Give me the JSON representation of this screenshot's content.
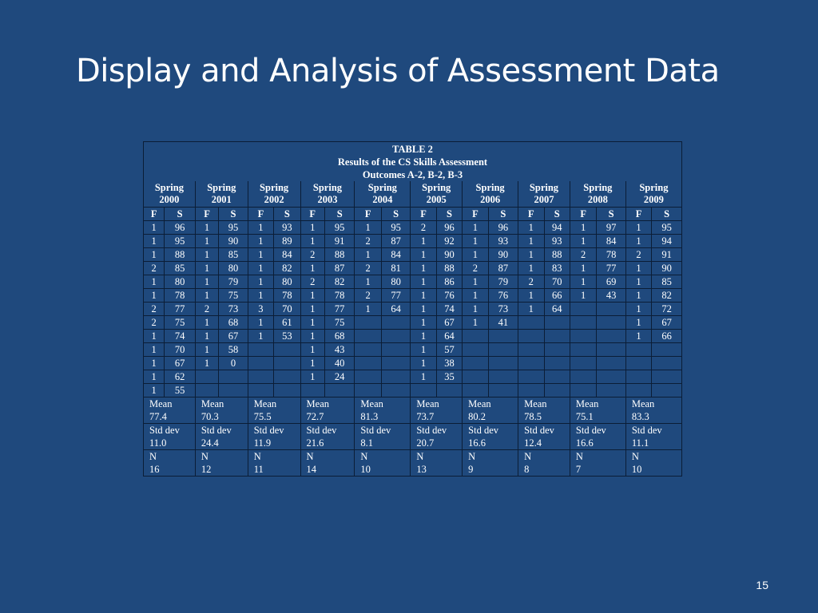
{
  "slide": {
    "title": "Display and Analysis of Assessment Data",
    "number": "15"
  },
  "table": {
    "caption": [
      "TABLE 2",
      "Results of the CS Skills Assessment",
      "Outcomes A-2, B-2, B-3"
    ],
    "terms": [
      [
        "Spring",
        "2000"
      ],
      [
        "Spring",
        "2001"
      ],
      [
        "Spring",
        "2002"
      ],
      [
        "Spring",
        "2003"
      ],
      [
        "Spring",
        "2004"
      ],
      [
        "Spring",
        "2005"
      ],
      [
        "Spring",
        "2006"
      ],
      [
        "Spring",
        "2007"
      ],
      [
        "Spring",
        "2008"
      ],
      [
        "Spring",
        "2009"
      ]
    ],
    "subheaders": [
      "F",
      "S"
    ],
    "rows": [
      [
        "1",
        "96",
        "1",
        "95",
        "1",
        "93",
        "1",
        "95",
        "1",
        "95",
        "2",
        "96",
        "1",
        "96",
        "1",
        "94",
        "1",
        "97",
        "1",
        "95"
      ],
      [
        "1",
        "95",
        "1",
        "90",
        "1",
        "89",
        "1",
        "91",
        "2",
        "87",
        "1",
        "92",
        "1",
        "93",
        "1",
        "93",
        "1",
        "84",
        "1",
        "94"
      ],
      [
        "1",
        "88",
        "1",
        "85",
        "1",
        "84",
        "2",
        "88",
        "1",
        "84",
        "1",
        "90",
        "1",
        "90",
        "1",
        "88",
        "2",
        "78",
        "2",
        "91"
      ],
      [
        "2",
        "85",
        "1",
        "80",
        "1",
        "82",
        "1",
        "87",
        "2",
        "81",
        "1",
        "88",
        "2",
        "87",
        "1",
        "83",
        "1",
        "77",
        "1",
        "90"
      ],
      [
        "1",
        "80",
        "1",
        "79",
        "1",
        "80",
        "2",
        "82",
        "1",
        "80",
        "1",
        "86",
        "1",
        "79",
        "2",
        "70",
        "1",
        "69",
        "1",
        "85"
      ],
      [
        "1",
        "78",
        "1",
        "75",
        "1",
        "78",
        "1",
        "78",
        "2",
        "77",
        "1",
        "76",
        "1",
        "76",
        "1",
        "66",
        "1",
        "43",
        "1",
        "82"
      ],
      [
        "2",
        "77",
        "2",
        "73",
        "3",
        "70",
        "1",
        "77",
        "1",
        "64",
        "1",
        "74",
        "1",
        "73",
        "1",
        "64",
        "",
        "",
        "1",
        "72"
      ],
      [
        "2",
        "75",
        "1",
        "68",
        "1",
        "61",
        "1",
        "75",
        "",
        "",
        "1",
        "67",
        "1",
        "41",
        "",
        "",
        "",
        "",
        "1",
        "67"
      ],
      [
        "1",
        "74",
        "1",
        "67",
        "1",
        "53",
        "1",
        "68",
        "",
        "",
        "1",
        "64",
        "",
        "",
        "",
        "",
        "",
        "",
        "1",
        "66"
      ],
      [
        "1",
        "70",
        "1",
        "58",
        "",
        "",
        "1",
        "43",
        "",
        "",
        "1",
        "57",
        "",
        "",
        "",
        "",
        "",
        "",
        "",
        ""
      ],
      [
        "1",
        "67",
        "1",
        "0",
        "",
        "",
        "1",
        "40",
        "",
        "",
        "1",
        "38",
        "",
        "",
        "",
        "",
        "",
        "",
        "",
        ""
      ],
      [
        "1",
        "62",
        "",
        "",
        "",
        "",
        "1",
        "24",
        "",
        "",
        "1",
        "35",
        "",
        "",
        "",
        "",
        "",
        "",
        "",
        ""
      ],
      [
        "1",
        "55",
        "",
        "",
        "",
        "",
        "",
        "",
        "",
        "",
        "",
        "",
        "",
        "",
        "",
        "",
        "",
        "",
        "",
        ""
      ]
    ],
    "stats": [
      [
        "Mean",
        "77.4",
        "Mean",
        "70.3",
        "Mean",
        "75.5",
        "Mean",
        "72.7",
        "Mean",
        "81.3",
        "Mean",
        "73.7",
        "Mean",
        "80.2",
        "Mean",
        "78.5",
        "Mean",
        "75.1",
        "Mean",
        "83.3"
      ],
      [
        "Std dev",
        "11.0",
        "Std dev",
        "24.4",
        " Std dev",
        "11.9",
        "Std dev",
        "21.6",
        "Std dev",
        "8.1",
        "Std dev",
        "20.7",
        "Std dev",
        "16.6",
        "Std dev",
        "12.4",
        "Std dev",
        "16.6",
        "Std dev",
        "11.1"
      ],
      [
        "N",
        "16",
        "N",
        "12",
        "N",
        "11",
        "N",
        "14",
        "N",
        "10",
        "N",
        "13",
        "N",
        "9",
        "N",
        "8",
        "N",
        "7",
        "N",
        "10"
      ]
    ]
  }
}
